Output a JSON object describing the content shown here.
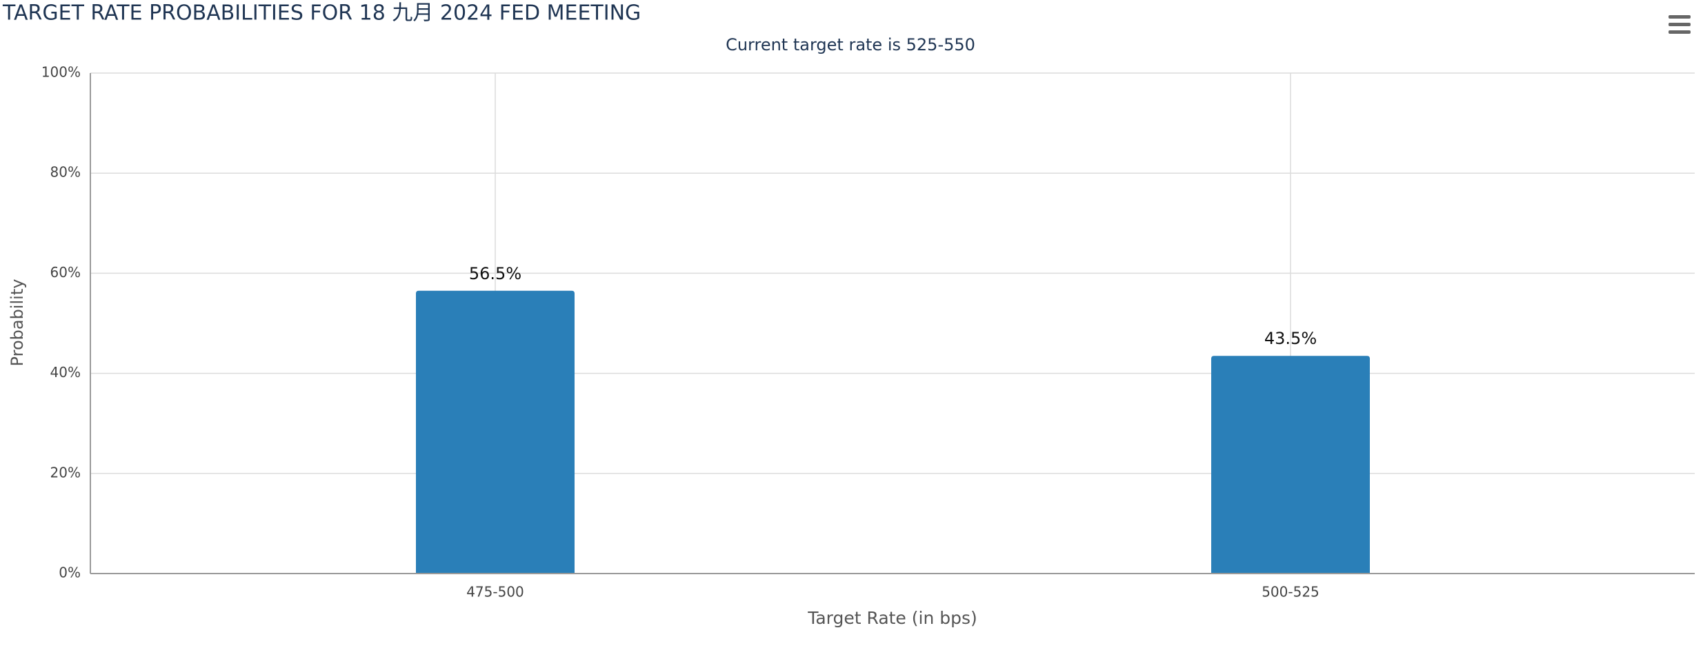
{
  "chart_data": {
    "type": "bar",
    "title": "TARGET RATE PROBABILITIES FOR 18 九月 2024 FED MEETING",
    "subtitle": "Current target rate is 525-550",
    "x_label": "Target Rate (in bps)",
    "y_label": "Probability",
    "categories": [
      "475-500",
      "500-525"
    ],
    "values": [
      56.5,
      43.5
    ],
    "value_labels": [
      "56.5%",
      "43.5%"
    ],
    "color": "#2a7fb8",
    "ylim": [
      0,
      100
    ],
    "yticks": [
      {
        "value": 0,
        "label": "0%"
      },
      {
        "value": 20,
        "label": "20%"
      },
      {
        "value": 40,
        "label": "40%"
      },
      {
        "value": 60,
        "label": "60%"
      },
      {
        "value": 80,
        "label": "80%"
      },
      {
        "value": 100,
        "label": "100%"
      }
    ],
    "grid": true
  }
}
